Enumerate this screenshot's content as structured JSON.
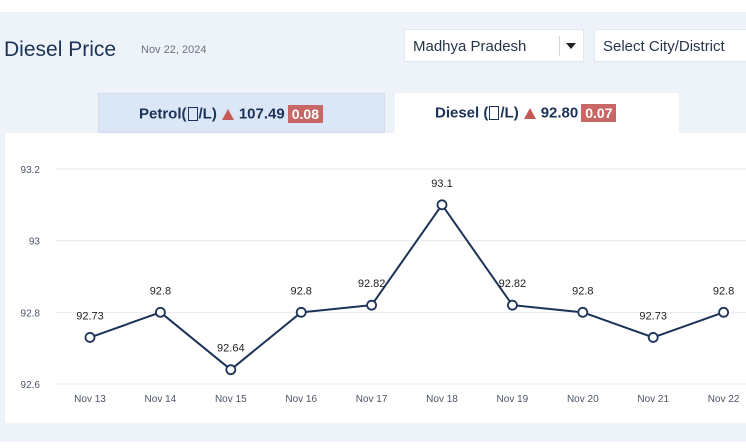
{
  "header": {
    "title": "Diesel Price",
    "date": "Nov 22, 2024",
    "state_select": {
      "value": "Madhya Pradesh"
    },
    "city_select": {
      "value": "Select City/District"
    }
  },
  "tabs": [
    {
      "fuel": "Petrol(",
      "unit_close": "/L)",
      "price": "107.49",
      "change": "0.08",
      "active": false
    },
    {
      "fuel": "Diesel (",
      "unit_close": "/L)",
      "price": "92.80",
      "change": "0.07",
      "active": true
    }
  ],
  "colors": {
    "line": "#1b3358",
    "badge": "#c86765",
    "up_arrow": "#c55a57",
    "title": "#1b3358"
  },
  "chart_data": {
    "type": "line",
    "title": "",
    "xlabel": "",
    "ylabel": "",
    "categories": [
      "Nov 13",
      "Nov 14",
      "Nov 15",
      "Nov 16",
      "Nov 17",
      "Nov 18",
      "Nov 19",
      "Nov 20",
      "Nov 21",
      "Nov 22"
    ],
    "series": [
      {
        "values": [
          92.73,
          92.8,
          92.64,
          92.8,
          92.82,
          93.1,
          92.82,
          92.8,
          92.73,
          92.8
        ]
      }
    ],
    "data_labels": [
      "92.73",
      "92.8",
      "92.64",
      "92.8",
      "92.82",
      "93.1",
      "92.82",
      "92.8",
      "92.73",
      "92.8"
    ],
    "yticks": [
      "92.6",
      "92.8",
      "93",
      "93.2"
    ],
    "ylim": [
      92.6,
      93.2
    ],
    "grid": true,
    "legend": "none"
  }
}
